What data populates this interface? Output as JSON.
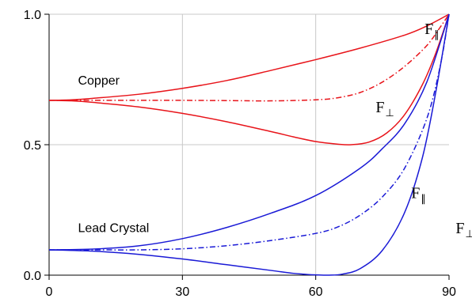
{
  "chart_data": {
    "type": "line",
    "xlim": [
      0,
      90
    ],
    "ylim": [
      0,
      1
    ],
    "x_ticks": [
      "0",
      "30",
      "60",
      "90"
    ],
    "y_ticks": [
      "0.0",
      "0.5",
      "1.0"
    ],
    "grid": true,
    "colors": {
      "copper": "#e8141a",
      "lead": "#1a1ad6",
      "grid": "#c8c8c8"
    },
    "series": [
      {
        "group": "Copper",
        "style": "solid",
        "color": "#e8141a",
        "x": [
          0,
          5,
          10,
          20,
          30,
          40,
          50,
          60,
          70,
          80,
          85,
          90
        ],
        "y": [
          0.67,
          0.672,
          0.678,
          0.693,
          0.716,
          0.746,
          0.785,
          0.826,
          0.87,
          0.92,
          0.955,
          1.0
        ]
      },
      {
        "group": "Copper",
        "style": "dashdot",
        "color": "#e8141a",
        "x": [
          0,
          10,
          20,
          30,
          40,
          50,
          60,
          65,
          70,
          75,
          80,
          85,
          88,
          90
        ],
        "y": [
          0.67,
          0.67,
          0.67,
          0.67,
          0.669,
          0.668,
          0.672,
          0.68,
          0.7,
          0.74,
          0.8,
          0.88,
          0.95,
          1.0
        ]
      },
      {
        "group": "Copper",
        "style": "solid",
        "color": "#e8141a",
        "x": [
          0,
          5,
          10,
          20,
          30,
          40,
          50,
          55,
          60,
          65,
          68,
          72,
          76,
          80,
          84,
          87,
          90
        ],
        "y": [
          0.67,
          0.668,
          0.662,
          0.645,
          0.62,
          0.588,
          0.55,
          0.53,
          0.512,
          0.502,
          0.5,
          0.51,
          0.545,
          0.615,
          0.73,
          0.85,
          1.0
        ]
      },
      {
        "group": "Lead Crystal",
        "style": "solid",
        "color": "#1a1ad6",
        "x": [
          0,
          10,
          20,
          30,
          40,
          50,
          60,
          70,
          75,
          80,
          85,
          90
        ],
        "y": [
          0.097,
          0.1,
          0.112,
          0.14,
          0.183,
          0.238,
          0.305,
          0.41,
          0.485,
          0.58,
          0.74,
          1.0
        ]
      },
      {
        "group": "Lead Crystal",
        "style": "dashdot",
        "color": "#1a1ad6",
        "x": [
          0,
          10,
          20,
          30,
          40,
          50,
          60,
          65,
          70,
          75,
          80,
          85,
          88,
          90
        ],
        "y": [
          0.097,
          0.097,
          0.097,
          0.101,
          0.113,
          0.133,
          0.16,
          0.185,
          0.23,
          0.3,
          0.41,
          0.6,
          0.8,
          1.0
        ]
      },
      {
        "group": "Lead Crystal",
        "style": "solid",
        "color": "#1a1ad6",
        "x": [
          0,
          10,
          20,
          30,
          40,
          50,
          55,
          60,
          63,
          66,
          70,
          75,
          80,
          84,
          87,
          90
        ],
        "y": [
          0.097,
          0.092,
          0.08,
          0.062,
          0.04,
          0.018,
          0.007,
          0.001,
          0.0,
          0.004,
          0.025,
          0.095,
          0.24,
          0.45,
          0.7,
          1.0
        ]
      }
    ],
    "annotations": [
      {
        "text": "Copper",
        "x": 6.5,
        "y": 0.73,
        "kind": "label"
      },
      {
        "text": "Lead Crystal",
        "x": 6.5,
        "y": 0.165,
        "kind": "label"
      },
      {
        "text": "F",
        "sub": "∥",
        "x": 84.5,
        "y": 0.925,
        "kind": "F"
      },
      {
        "text": "F",
        "sub": "⊥",
        "x": 73.5,
        "y": 0.625,
        "kind": "F"
      },
      {
        "text": "F",
        "sub": "∥",
        "x": 81.5,
        "y": 0.295,
        "kind": "F"
      },
      {
        "text": "F",
        "sub": "⊥",
        "x": 91.5,
        "y": 0.16,
        "kind": "F"
      }
    ]
  }
}
